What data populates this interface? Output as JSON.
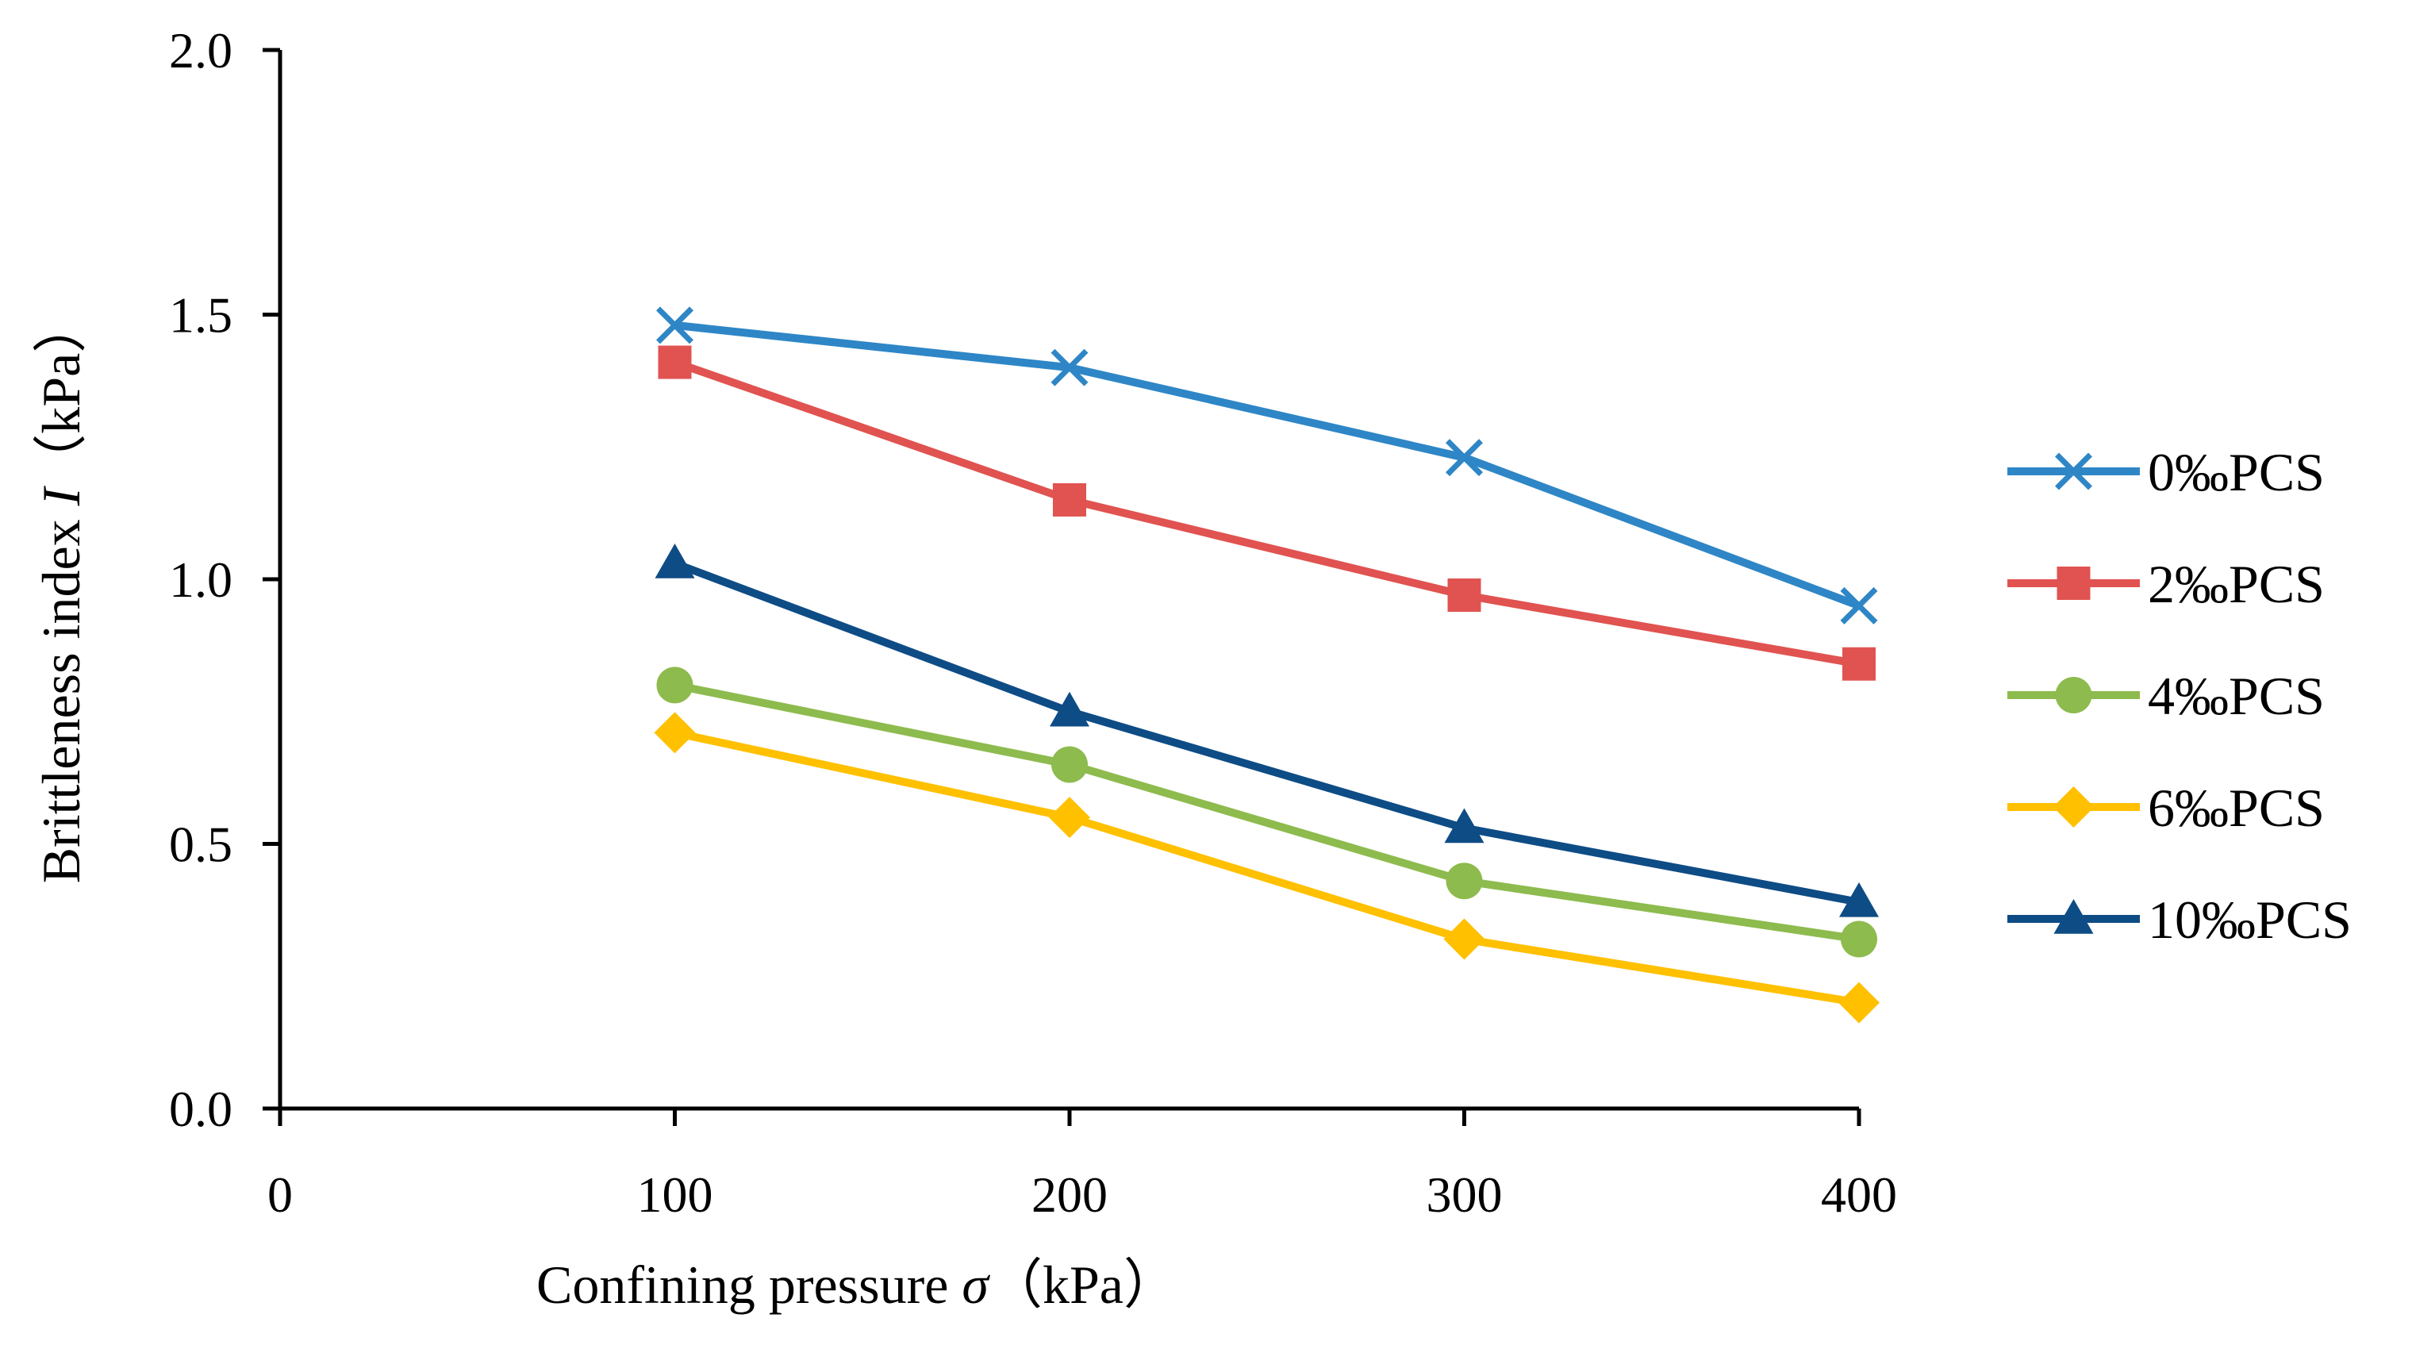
{
  "chart_data": {
    "type": "line",
    "xlabel": {
      "main": "Confining pressure ",
      "symbol": "σ",
      "unit": "（kPa）"
    },
    "ylabel": {
      "main": "Brittleness index ",
      "symbol": "I",
      "unit": "（kPa）"
    },
    "xlim": [
      0,
      400
    ],
    "ylim": [
      0,
      2.0
    ],
    "x_ticks": [
      "0",
      "100",
      "200",
      "300",
      "400"
    ],
    "y_ticks": [
      "0.0",
      "0.5",
      "1.0",
      "1.5",
      "2.0"
    ],
    "x": [
      100,
      200,
      300,
      400
    ],
    "grid": false,
    "legend_position": "right",
    "series": [
      {
        "name": "0‰PCS",
        "values": [
          1.48,
          1.4,
          1.23,
          0.95
        ],
        "color": "#2E86C6",
        "marker": "x"
      },
      {
        "name": "2‰PCS",
        "values": [
          1.41,
          1.15,
          0.97,
          0.84
        ],
        "color": "#E05350",
        "marker": "square"
      },
      {
        "name": "4‰PCS",
        "values": [
          0.8,
          0.65,
          0.43,
          0.32
        ],
        "color": "#8DBB4E",
        "marker": "circle"
      },
      {
        "name": "6‰PCS",
        "values": [
          0.71,
          0.55,
          0.32,
          0.2
        ],
        "color": "#FFC000",
        "marker": "diamond"
      },
      {
        "name": "10‰PCS",
        "values": [
          1.03,
          0.75,
          0.53,
          0.39
        ],
        "color": "#0E4C85",
        "marker": "triangle"
      }
    ]
  }
}
